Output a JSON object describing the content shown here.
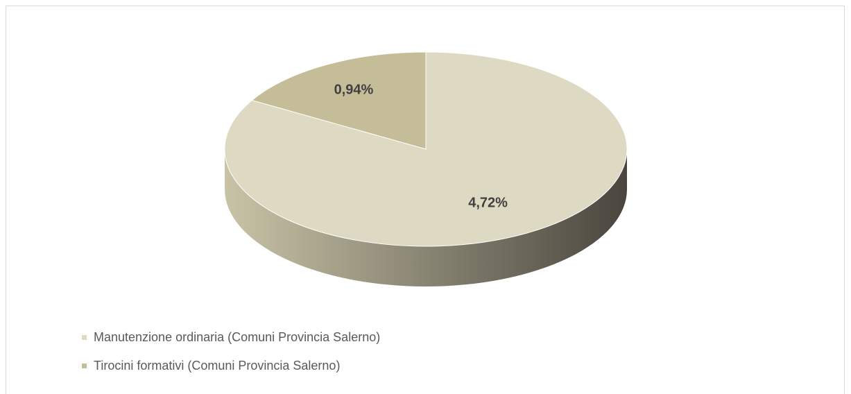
{
  "chart_data": {
    "type": "pie",
    "style": "3d",
    "title": "",
    "slices": [
      {
        "label": "Manutenzione ordinaria (Comuni Provincia Salerno)",
        "value": 4.72,
        "display": "4,72%",
        "color": "#ddd9c3"
      },
      {
        "label": "Tirocini formativi (Comuni Provincia Salerno)",
        "value": 0.94,
        "display": "0,94%",
        "color": "#c4bd97"
      }
    ],
    "legend_position": "bottom-left"
  },
  "colors": {
    "side_light": "#c4bd97",
    "side_dark": "#4f4b42",
    "label_text": "#404040"
  }
}
